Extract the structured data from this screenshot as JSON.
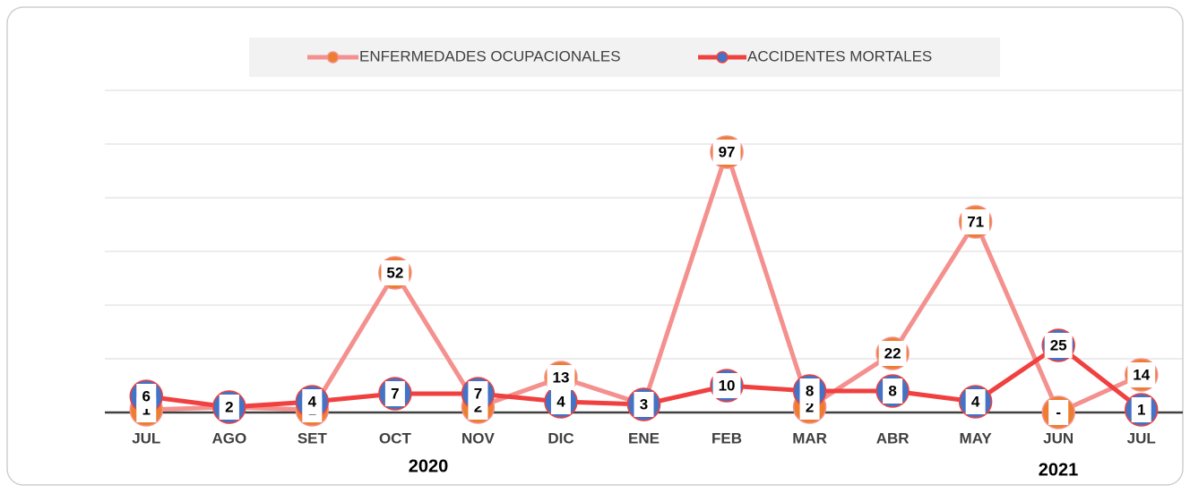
{
  "chart_data": {
    "type": "line",
    "categories": [
      "JUL",
      "AGO",
      "SET",
      "OCT",
      "NOV",
      "DIC",
      "ENE",
      "FEB",
      "MAR",
      "ABR",
      "MAY",
      "JUN",
      "JUL"
    ],
    "series": [
      {
        "name": "ENFERMEDADES OCUPACIONALES",
        "color": "#f4908e",
        "marker_color": "#ed7d31",
        "values": [
          1,
          2,
          1,
          52,
          2,
          13,
          3,
          97,
          2,
          22,
          71,
          0,
          14
        ],
        "value_labels": [
          "1",
          "2",
          "1",
          "52",
          "2",
          "13",
          "3",
          "97",
          "2",
          "22",
          "71",
          "-",
          "14"
        ]
      },
      {
        "name": "ACCIDENTES MORTALES",
        "color": "#f0403f",
        "marker_color": "#4472c4",
        "values": [
          6,
          2,
          4,
          7,
          7,
          4,
          3,
          10,
          8,
          8,
          4,
          25,
          1
        ]
      }
    ],
    "years": [
      "2020",
      "2021"
    ],
    "ylim": [
      0,
      120
    ],
    "yticks": [
      0,
      20,
      40,
      60,
      80,
      100,
      120
    ],
    "grid": true,
    "legend": "top"
  }
}
